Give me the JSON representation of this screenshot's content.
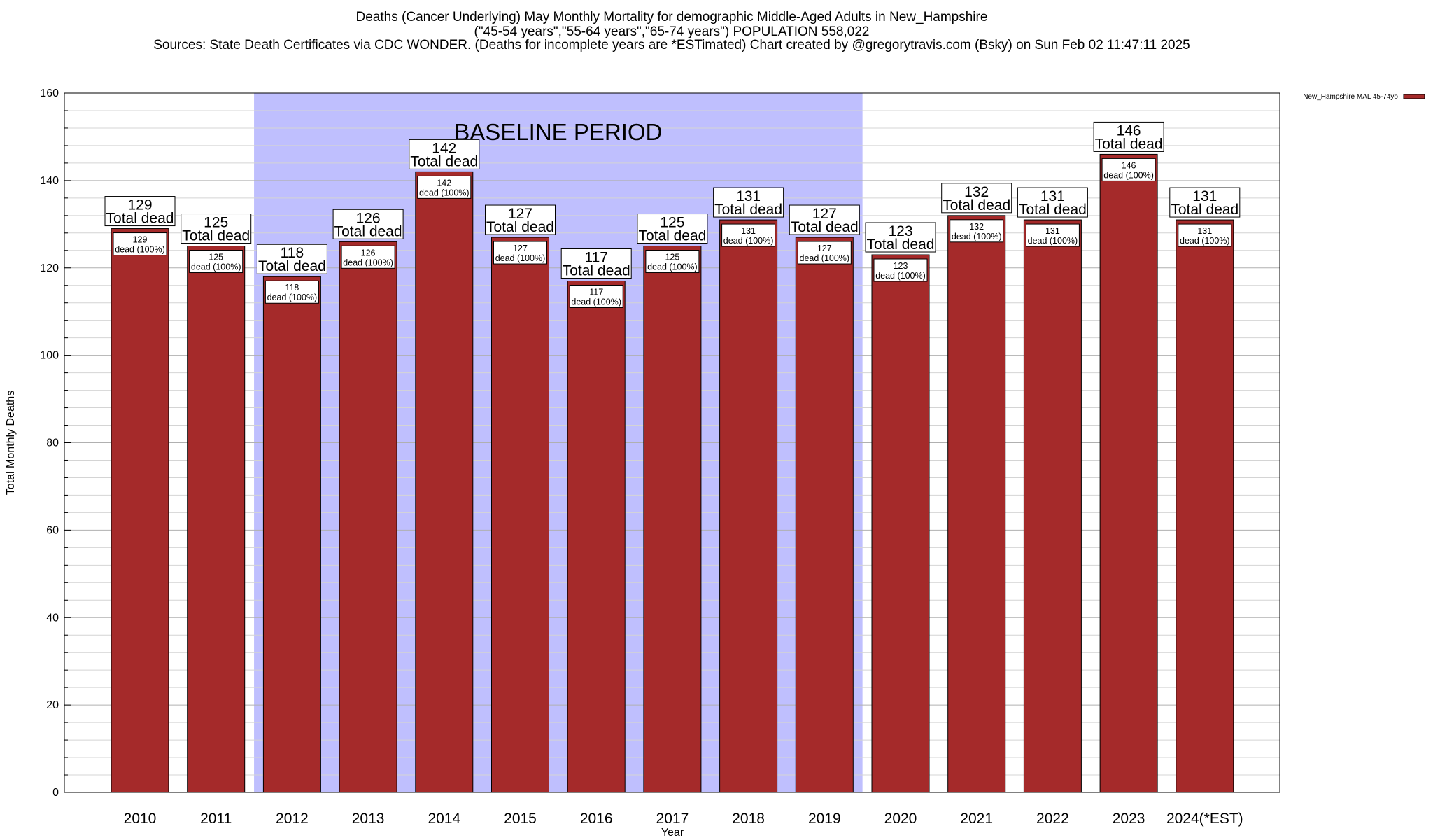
{
  "header": {
    "line1": "Deaths (Cancer Underlying) May Monthly Mortality for demographic Middle-Aged Adults in New_Hampshire",
    "line2": "(\"45-54 years\",\"55-64 years\",\"65-74 years\") POPULATION 558,022",
    "line3": "Sources: State Death Certificates via CDC WONDER. (Deaths for incomplete years are *ESTimated)                Chart created by @gregorytravis.com (Bsky) on Sun Feb 02 11:47:11 2025"
  },
  "chart_data": {
    "type": "bar",
    "title": "Deaths (Cancer Underlying) May Monthly Mortality for demographic Middle-Aged Adults in New_Hampshire",
    "xlabel": "Year",
    "ylabel": "Total Monthly Deaths",
    "ylim": [
      0,
      160
    ],
    "yticks": [
      0,
      20,
      40,
      60,
      80,
      100,
      120,
      140,
      160
    ],
    "grid": true,
    "legend_position": "top-right",
    "categories": [
      "2010",
      "2011",
      "2012",
      "2013",
      "2014",
      "2015",
      "2016",
      "2017",
      "2018",
      "2019",
      "2020",
      "2021",
      "2022",
      "2023",
      "2024(*EST)"
    ],
    "series": [
      {
        "name": "New_Hampshire MAL 45-74yo",
        "color": "#a52a2a",
        "values": [
          129,
          125,
          118,
          126,
          142,
          127,
          117,
          125,
          131,
          127,
          123,
          132,
          131,
          146,
          131
        ]
      }
    ],
    "total_label_suffix": "Total dead",
    "inner_label_suffix": "dead (100%)",
    "shaded_region": {
      "label": "BASELINE PERIOD",
      "from": "2012",
      "to": "2019",
      "color": "#bfbffe"
    }
  }
}
